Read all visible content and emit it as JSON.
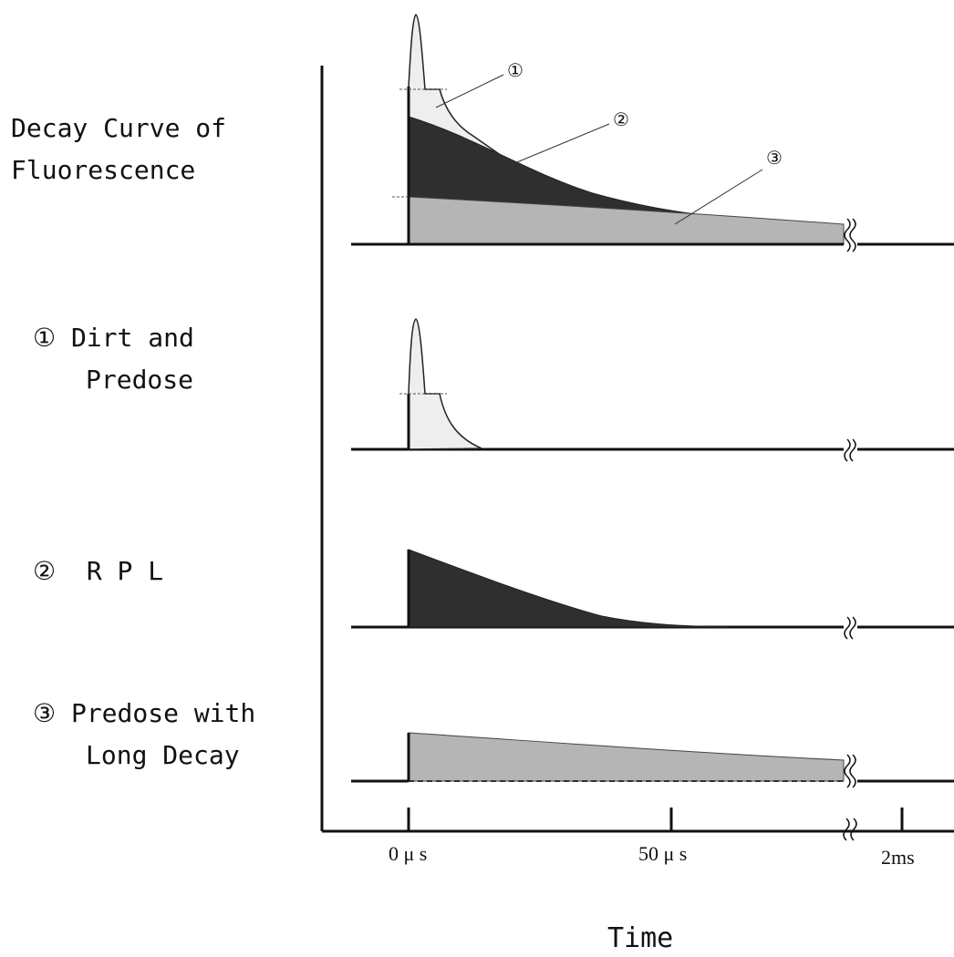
{
  "labels": {
    "decay_curve_line1": "Decay Curve of",
    "decay_curve_line2": "Fluorescence",
    "comp1_num": "①",
    "comp1_line1": "Dirt and",
    "comp1_line2": "Predose",
    "comp2_num": "②",
    "comp2_line1": "R P L",
    "comp3_num": "③",
    "comp3_line1": "Predose with",
    "comp3_line2": "Long Decay"
  },
  "axis": {
    "tick_0": "0 μ s",
    "tick_50": "50 μ s",
    "tick_2ms": "2ms",
    "title": "Time"
  },
  "callouts": {
    "c1": "①",
    "c2": "②",
    "c3": "③"
  },
  "colors": {
    "dirt_predose": "#eeeeee",
    "rpl": "#2f2f2f",
    "long_decay": "#b5b5b5",
    "line": "#111111"
  }
}
